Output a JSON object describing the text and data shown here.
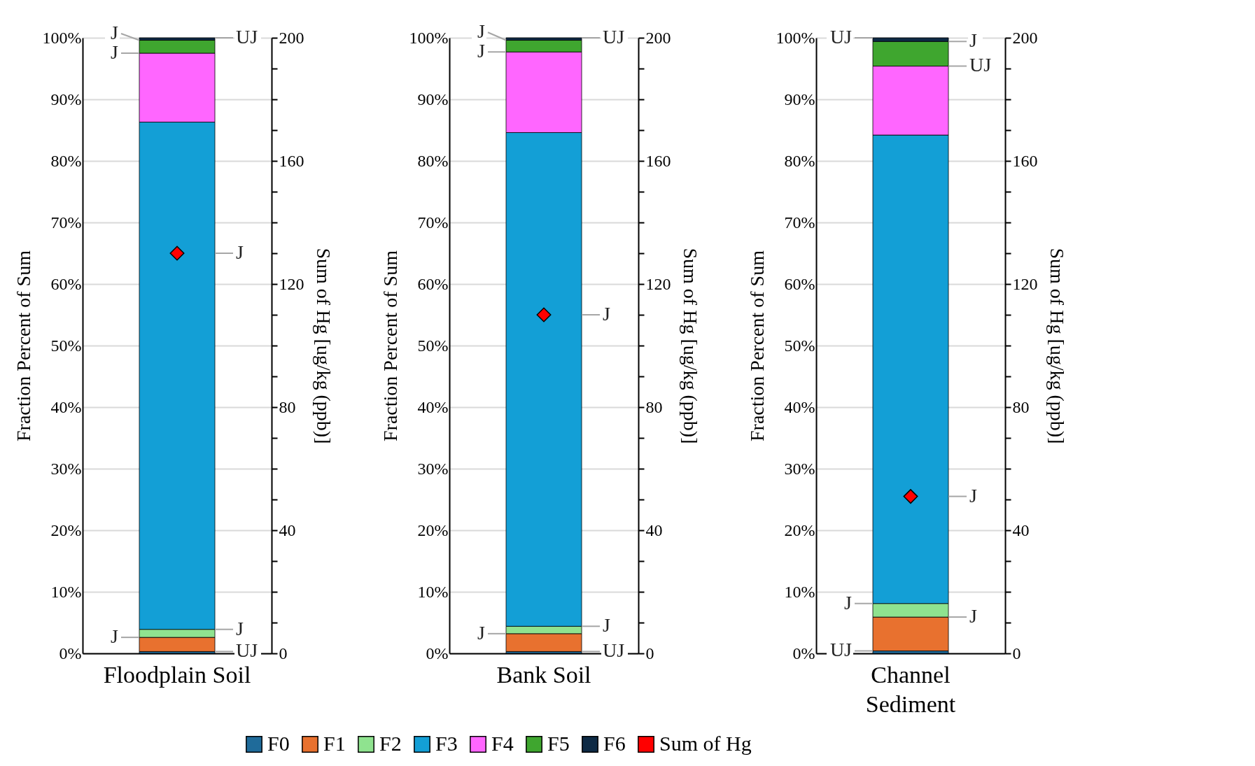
{
  "chart_data": [
    {
      "type": "bar",
      "stacked": true,
      "categories": [
        "Floodplain Soil"
      ],
      "ylabel": "Fraction Percent of Sum",
      "y2label": "Sum of Hg [ug/kg (ppb)]",
      "ylim": [
        0,
        100
      ],
      "yticks": [
        {
          "value": 0,
          "label": "0%"
        },
        {
          "value": 10,
          "label": "10%"
        },
        {
          "value": 20,
          "label": "20%"
        },
        {
          "value": 30,
          "label": "30%"
        },
        {
          "value": 40,
          "label": "40%"
        },
        {
          "value": 50,
          "label": "50%"
        },
        {
          "value": 60,
          "label": "60%"
        },
        {
          "value": 70,
          "label": "70%"
        },
        {
          "value": 80,
          "label": "80%"
        },
        {
          "value": 90,
          "label": "90%"
        },
        {
          "value": 100,
          "label": "100%"
        }
      ],
      "y2lim": [
        0,
        200
      ],
      "y2ticks": [
        0,
        {
          "value": 10,
          "label": null
        },
        {
          "value": 20,
          "label": null
        },
        {
          "value": 30,
          "label": null
        },
        40,
        {
          "value": 50,
          "label": null
        },
        {
          "value": 60,
          "label": null
        },
        {
          "value": 70,
          "label": null
        },
        80,
        {
          "value": 90,
          "label": null
        },
        {
          "value": 100,
          "label": null
        },
        {
          "value": 110,
          "label": null
        },
        120,
        {
          "value": 130,
          "label": null
        },
        {
          "value": 140,
          "label": null
        },
        {
          "value": 150,
          "label": null
        },
        160,
        {
          "value": 170,
          "label": null
        },
        {
          "value": 180,
          "label": null
        },
        {
          "value": 190,
          "label": null
        },
        200
      ],
      "grid": "y",
      "legend": "bottom",
      "marker": "diamond",
      "series": [
        {
          "name": "F0",
          "color": "#1f6b9a",
          "values": [
            0.3
          ]
        },
        {
          "name": "F1",
          "color": "#e8712f",
          "values": [
            2.3
          ]
        },
        {
          "name": "F2",
          "color": "#8fe38f",
          "values": [
            1.3
          ]
        },
        {
          "name": "F3",
          "color": "#139fd6",
          "values": [
            82.4
          ]
        },
        {
          "name": "F4",
          "color": "#ff66ff",
          "values": [
            11.2
          ]
        },
        {
          "name": "F5",
          "color": "#3fa62f",
          "values": [
            2.1
          ]
        },
        {
          "name": "F6",
          "color": "#0e2a45",
          "values": [
            0.4
          ]
        },
        {
          "name": "Sum of Hg",
          "type": "scatter",
          "axis": "y2",
          "color": "#ff0000",
          "values": [
            130
          ]
        }
      ],
      "annotations": [
        {
          "text": "UJ",
          "x": "Floodplain Soil",
          "y": 100
        },
        {
          "text": "J",
          "x": "Floodplain Soil",
          "y": 99.6
        },
        {
          "text": "J",
          "x": "Floodplain Soil",
          "y": 65
        },
        {
          "text": "J",
          "x": "Floodplain Soil",
          "y": 97.5
        },
        {
          "text": "J",
          "x": "Floodplain Soil",
          "y": 3.9
        },
        {
          "text": "J",
          "x": "Floodplain Soil",
          "y": 2.6
        },
        {
          "text": "UJ",
          "x": "Floodplain Soil",
          "y": 0.3
        }
      ]
    },
    {
      "type": "bar",
      "stacked": true,
      "categories": [
        "Bank Soil"
      ],
      "ylabel": "Fraction Percent of Sum",
      "y2label": "Sum of Hg [ug/kg (ppb)]",
      "ylim": [
        0,
        100
      ],
      "yticks": [
        {
          "value": 0,
          "label": "0%"
        },
        {
          "value": 10,
          "label": "10%"
        },
        {
          "value": 20,
          "label": "20%"
        },
        {
          "value": 30,
          "label": "30%"
        },
        {
          "value": 40,
          "label": "40%"
        },
        {
          "value": 50,
          "label": "50%"
        },
        {
          "value": 60,
          "label": "60%"
        },
        {
          "value": 70,
          "label": "70%"
        },
        {
          "value": 80,
          "label": "80%"
        },
        {
          "value": 90,
          "label": "90%"
        },
        {
          "value": 100,
          "label": "100%"
        }
      ],
      "y2lim": [
        0,
        200
      ],
      "y2ticks": [
        0,
        {
          "value": 10,
          "label": null
        },
        {
          "value": 20,
          "label": null
        },
        {
          "value": 30,
          "label": null
        },
        40,
        {
          "value": 50,
          "label": null
        },
        {
          "value": 60,
          "label": null
        },
        {
          "value": 70,
          "label": null
        },
        80,
        {
          "value": 90,
          "label": null
        },
        {
          "value": 100,
          "label": null
        },
        {
          "value": 110,
          "label": null
        },
        120,
        {
          "value": 130,
          "label": null
        },
        {
          "value": 140,
          "label": null
        },
        {
          "value": 150,
          "label": null
        },
        160,
        {
          "value": 170,
          "label": null
        },
        {
          "value": 180,
          "label": null
        },
        {
          "value": 190,
          "label": null
        },
        200
      ],
      "grid": "y",
      "marker": "diamond",
      "series": [
        {
          "name": "F0",
          "color": "#1f6b9a",
          "values": [
            0.3
          ]
        },
        {
          "name": "F1",
          "color": "#e8712f",
          "values": [
            2.9
          ]
        },
        {
          "name": "F2",
          "color": "#8fe38f",
          "values": [
            1.2
          ]
        },
        {
          "name": "F3",
          "color": "#139fd6",
          "values": [
            80.2
          ]
        },
        {
          "name": "F4",
          "color": "#ff66ff",
          "values": [
            13.1
          ]
        },
        {
          "name": "F5",
          "color": "#3fa62f",
          "values": [
            1.9
          ]
        },
        {
          "name": "F6",
          "color": "#0e2a45",
          "values": [
            0.4
          ]
        },
        {
          "name": "Sum of Hg",
          "type": "scatter",
          "axis": "y2",
          "color": "#ff0000",
          "values": [
            110
          ]
        }
      ],
      "annotations": [
        {
          "text": "UJ",
          "x": "Bank Soil",
          "y": 100
        },
        {
          "text": "J",
          "x": "Bank Soil",
          "y": 97.7
        },
        {
          "text": "J",
          "x": "Bank Soil",
          "y": 55
        },
        {
          "text": "J",
          "x": "Bank Soil",
          "y": 99.6
        },
        {
          "text": "J",
          "x": "Bank Soil",
          "y": 4.4
        },
        {
          "text": "J",
          "x": "Bank Soil",
          "y": 3.2
        },
        {
          "text": "UJ",
          "x": "Bank Soil",
          "y": 0.3
        }
      ]
    },
    {
      "type": "bar",
      "stacked": true,
      "categories": [
        "Channel Sediment"
      ],
      "ylabel": "Fraction Percent of Sum",
      "y2label": "Sum of Hg [ug/kg (ppb)]",
      "ylim": [
        0,
        100
      ],
      "yticks": [
        {
          "value": 0,
          "label": "0%"
        },
        {
          "value": 10,
          "label": "10%"
        },
        {
          "value": 20,
          "label": "20%"
        },
        {
          "value": 30,
          "label": "30%"
        },
        {
          "value": 40,
          "label": "40%"
        },
        {
          "value": 50,
          "label": "50%"
        },
        {
          "value": 60,
          "label": "60%"
        },
        {
          "value": 70,
          "label": "70%"
        },
        {
          "value": 80,
          "label": "80%"
        },
        {
          "value": 90,
          "label": "90%"
        },
        {
          "value": 100,
          "label": "100%"
        }
      ],
      "y2lim": [
        0,
        200
      ],
      "y2ticks": [
        0,
        {
          "value": 10,
          "label": null
        },
        {
          "value": 20,
          "label": null
        },
        {
          "value": 30,
          "label": null
        },
        40,
        {
          "value": 50,
          "label": null
        },
        {
          "value": 60,
          "label": null
        },
        {
          "value": 70,
          "label": null
        },
        80,
        {
          "value": 90,
          "label": null
        },
        {
          "value": 100,
          "label": null
        },
        {
          "value": 110,
          "label": null
        },
        120,
        {
          "value": 130,
          "label": null
        },
        {
          "value": 140,
          "label": null
        },
        {
          "value": 150,
          "label": null
        },
        160,
        {
          "value": 170,
          "label": null
        },
        {
          "value": 180,
          "label": null
        },
        {
          "value": 190,
          "label": null
        },
        200
      ],
      "grid": "y",
      "marker": "diamond",
      "series": [
        {
          "name": "F0",
          "color": "#1f6b9a",
          "values": [
            0.4
          ]
        },
        {
          "name": "F1",
          "color": "#e8712f",
          "values": [
            5.5
          ]
        },
        {
          "name": "F2",
          "color": "#8fe38f",
          "values": [
            2.2
          ]
        },
        {
          "name": "F3",
          "color": "#139fd6",
          "values": [
            76.1
          ]
        },
        {
          "name": "F4",
          "color": "#ff66ff",
          "values": [
            11.2
          ]
        },
        {
          "name": "F5",
          "color": "#3fa62f",
          "values": [
            4.0
          ]
        },
        {
          "name": "F6",
          "color": "#0e2a45",
          "values": [
            0.6
          ]
        },
        {
          "name": "Sum of Hg",
          "type": "scatter",
          "axis": "y2",
          "color": "#ff0000",
          "values": [
            51
          ]
        }
      ],
      "annotations": [
        {
          "text": "J",
          "x": "Channel Sediment",
          "y": 99.4
        },
        {
          "text": "UJ",
          "x": "Channel Sediment",
          "y": 100
        },
        {
          "text": "UJ",
          "x": "Channel Sediment",
          "y": 95.4
        },
        {
          "text": "J",
          "x": "Channel Sediment",
          "y": 8.1
        },
        {
          "text": "J",
          "x": "Channel Sediment",
          "y": 25.5
        },
        {
          "text": "UJ",
          "x": "Channel Sediment",
          "y": 0.4
        },
        {
          "text": "J",
          "x": "Channel Sediment",
          "y": 5.9
        }
      ]
    }
  ]
}
